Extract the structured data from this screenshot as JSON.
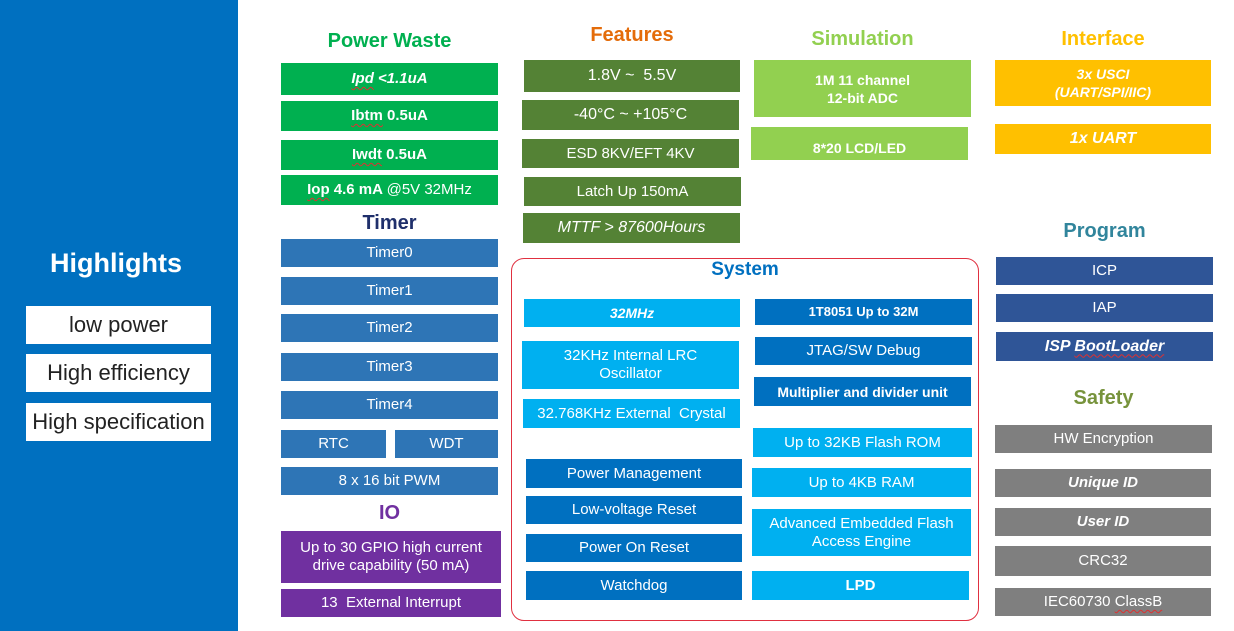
{
  "highlights": {
    "title": "Highlights",
    "items": [
      "low power",
      "High efficiency",
      "High specification"
    ]
  },
  "power_waste": {
    "title": "Power Waste",
    "items": [
      {
        "a": "Ipd",
        "b": " <1.1uA"
      },
      {
        "a": "Ibtm",
        "b": " 0.5uA"
      },
      {
        "a": "Iwdt",
        "b": " 0.5uA"
      },
      {
        "a": "Iop",
        "b": " 4.6 mA ",
        "c": "@5V 32MHz"
      }
    ]
  },
  "timer": {
    "title": "Timer",
    "items": [
      "Timer0",
      "Timer1",
      "Timer2",
      "Timer3",
      "Timer4",
      "RTC",
      "WDT",
      "8 x 16 bit PWM"
    ]
  },
  "io": {
    "title": "IO",
    "items": [
      "Up to 30 GPIO high current drive capability (50 mA)",
      "13  External Interrupt"
    ]
  },
  "features": {
    "title": "Features",
    "items": [
      "1.8V ~  5.5V",
      "-40°C ~ +105°C",
      "ESD 8KV/EFT 4KV",
      "Latch Up 150mA",
      "MTTF > 87600Hours"
    ]
  },
  "simulation": {
    "title": "Simulation",
    "items": [
      "1M 11 channel\n12-bit ADC",
      "8*20 LCD/LED"
    ]
  },
  "interface": {
    "title": "Interface",
    "items": [
      "3x USCI\n(UART/SPI/IIC)",
      "1x UART"
    ]
  },
  "program": {
    "title": "Program",
    "items": [
      "ICP",
      "IAP",
      "ISP ",
      "BootLoader"
    ]
  },
  "safety": {
    "title": "Safety",
    "items": [
      "HW Encryption",
      "Unique ID",
      "User ID",
      "CRC32",
      "IEC60730 ",
      "ClassB"
    ]
  },
  "system": {
    "title": "System",
    "left": [
      "32MHz",
      "32KHz Internal LRC Oscillator",
      "32.768KHz External  Crystal",
      "Power Management",
      "Low-voltage Reset",
      "Power On Reset",
      "Watchdog"
    ],
    "right": [
      "1T8051 Up to 32M",
      "JTAG/SW Debug",
      "Multiplier and divider unit",
      "Up to 32KB Flash ROM",
      "Up to 4KB RAM",
      "Advanced Embedded Flash Access Engine",
      "LPD"
    ]
  },
  "colors": {
    "highlight_bg": "#0070C0",
    "power": "#00B050",
    "features": "#548235",
    "simulation": "#92D050",
    "interface": "#FFC000",
    "timer": "#2E75B6",
    "io": "#7030A0",
    "program": "#2F5597",
    "safety": "#7F7F7F",
    "system_light": "#00B0F0",
    "system_dark": "#0070C0",
    "system_border": "#E03040"
  }
}
